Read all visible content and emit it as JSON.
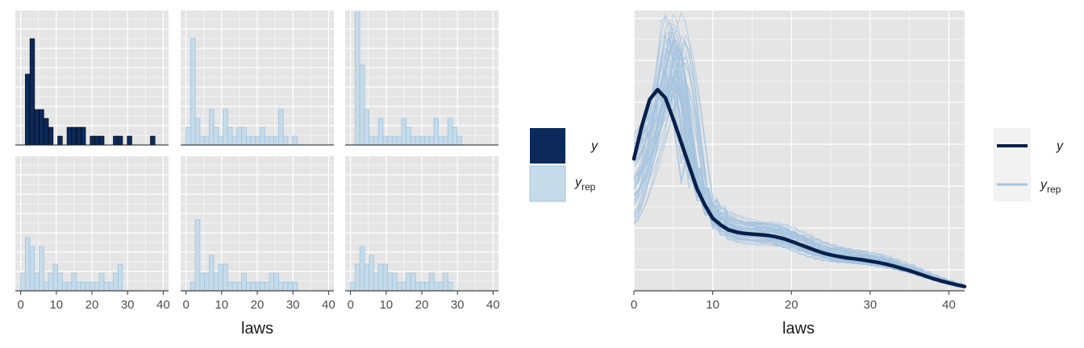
{
  "colors": {
    "y_fill": "#0b2a5a",
    "y_line": "#08204a",
    "rep_fill": "#c6dbe9",
    "rep_stroke": "#9ec3df",
    "rep_line": "#a6c4df",
    "panel_bg": "#e5e5e5",
    "grid": "#ffffff"
  },
  "legend_hist": {
    "y": "y",
    "yrep_base": "y",
    "yrep_sub": "rep"
  },
  "legend_dens": {
    "y": "y",
    "yrep_base": "y",
    "yrep_sub": "rep"
  },
  "chart_data": [
    {
      "type": "bar",
      "description": "ppc_hist: observed y (first panel) and five replicated datasets y_rep",
      "xlabel": "laws",
      "xlim": [
        -1.5,
        41.5
      ],
      "xticks": [
        0,
        10,
        20,
        30,
        40
      ],
      "bin_width": 1.3,
      "panels": [
        {
          "name": "y",
          "counts": [
            0,
            8,
            12,
            4,
            4,
            3,
            2,
            0,
            1,
            0,
            2,
            2,
            2,
            2,
            0,
            1,
            1,
            1,
            0,
            0,
            1,
            1,
            0,
            1,
            0,
            0,
            0,
            0,
            1,
            0
          ]
        },
        {
          "name": "y_rep",
          "counts": [
            2,
            12,
            3,
            1,
            1,
            4,
            2,
            1,
            4,
            2,
            1,
            2,
            2,
            1,
            1,
            1,
            2,
            1,
            1,
            1,
            4,
            1,
            0,
            1,
            0,
            0,
            0,
            0,
            0,
            0
          ]
        },
        {
          "name": "y_rep",
          "counts": [
            0,
            15,
            9,
            4,
            1,
            1,
            3,
            1,
            1,
            1,
            1,
            3,
            2,
            1,
            1,
            1,
            1,
            1,
            3,
            1,
            1,
            3,
            2,
            1,
            0,
            0,
            0,
            0,
            0,
            0
          ]
        },
        {
          "name": "y_rep",
          "counts": [
            2,
            6,
            5,
            2,
            5,
            1,
            2,
            3,
            2,
            1,
            1,
            2,
            1,
            1,
            1,
            1,
            1,
            2,
            1,
            1,
            2,
            3,
            0,
            0,
            0,
            0,
            0,
            0,
            0,
            0
          ]
        },
        {
          "name": "y_rep",
          "counts": [
            0,
            1,
            8,
            2,
            2,
            4,
            2,
            3,
            3,
            1,
            1,
            1,
            2,
            1,
            1,
            1,
            1,
            1,
            2,
            2,
            1,
            1,
            1,
            1,
            0,
            0,
            0,
            0,
            0,
            0
          ]
        },
        {
          "name": "y_rep",
          "counts": [
            1,
            3,
            5,
            3,
            4,
            2,
            3,
            3,
            2,
            2,
            1,
            1,
            2,
            2,
            1,
            1,
            1,
            2,
            1,
            1,
            2,
            1,
            0,
            0,
            0,
            0,
            0,
            0,
            0,
            0
          ]
        }
      ]
    },
    {
      "type": "line",
      "description": "ppc_dens_overlay: kernel density of y with overlaid y_rep densities",
      "xlabel": "laws",
      "xlim": [
        0,
        42
      ],
      "xticks": [
        0,
        10,
        20,
        30,
        40
      ],
      "ylim": [
        0,
        0.085
      ],
      "y": {
        "x": [
          0,
          1,
          2,
          3,
          4,
          5,
          6,
          7,
          8,
          9,
          10,
          11,
          12,
          13,
          14,
          15,
          16,
          17,
          18,
          19,
          20,
          21,
          22,
          23,
          24,
          25,
          26,
          27,
          28,
          29,
          30,
          31,
          32,
          33,
          34,
          35,
          36,
          37,
          38,
          39,
          40,
          41,
          42
        ],
        "density": [
          0.04,
          0.05,
          0.058,
          0.061,
          0.0585,
          0.052,
          0.045,
          0.038,
          0.031,
          0.026,
          0.022,
          0.02,
          0.0185,
          0.0178,
          0.0174,
          0.0172,
          0.017,
          0.0168,
          0.0164,
          0.0158,
          0.015,
          0.0141,
          0.0132,
          0.0123,
          0.0115,
          0.0109,
          0.0104,
          0.01,
          0.0097,
          0.0094,
          0.009,
          0.0086,
          0.0081,
          0.0075,
          0.0068,
          0.0061,
          0.0053,
          0.0045,
          0.0037,
          0.003,
          0.0024,
          0.0018,
          0.0013
        ]
      },
      "y_rep": {
        "n_draws": 60,
        "mean_peak_x": 5,
        "mean_peak_density": 0.071,
        "peak_density_range": [
          0.058,
          0.085
        ]
      }
    }
  ]
}
